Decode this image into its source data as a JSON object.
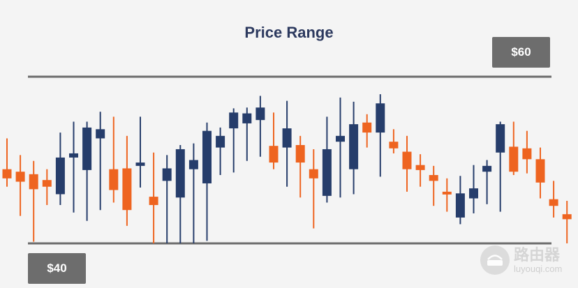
{
  "chart_data": {
    "type": "candlestick",
    "title": "Price Range",
    "resistance": {
      "value": 60,
      "label": "$60"
    },
    "support": {
      "value": 40,
      "label": "$40"
    },
    "ylim": [
      40,
      60
    ],
    "colors": {
      "up": "#263d6b",
      "down": "#ee6420",
      "line": "#6b6b6b",
      "title": "#2d3a5f"
    },
    "candles": [
      {
        "open": 48.9,
        "close": 47.8,
        "high": 52.6,
        "low": 46.8,
        "dir": "down"
      },
      {
        "open": 48.6,
        "close": 47.4,
        "high": 50.6,
        "low": 43.3,
        "dir": "down"
      },
      {
        "open": 48.3,
        "close": 46.5,
        "high": 49.9,
        "low": 40.2,
        "dir": "down"
      },
      {
        "open": 47.6,
        "close": 46.8,
        "high": 48.9,
        "low": 44.6,
        "dir": "down"
      },
      {
        "open": 45.9,
        "close": 50.3,
        "high": 53.3,
        "low": 44.6,
        "dir": "up"
      },
      {
        "open": 50.3,
        "close": 50.8,
        "high": 54.6,
        "low": 43.7,
        "dir": "up"
      },
      {
        "open": 48.8,
        "close": 53.9,
        "high": 54.6,
        "low": 42.7,
        "dir": "up"
      },
      {
        "open": 52.6,
        "close": 53.7,
        "high": 55.8,
        "low": 44.0,
        "dir": "up"
      },
      {
        "open": 48.9,
        "close": 46.4,
        "high": 55.2,
        "low": 44.9,
        "dir": "down"
      },
      {
        "open": 49.0,
        "close": 44.0,
        "high": 52.9,
        "low": 42.1,
        "dir": "down"
      },
      {
        "open": 49.3,
        "close": 49.7,
        "high": 55.2,
        "low": 46.7,
        "dir": "up"
      },
      {
        "open": 45.6,
        "close": 44.6,
        "high": 50.9,
        "low": 40.0,
        "dir": "down"
      },
      {
        "open": 47.5,
        "close": 49.0,
        "high": 50.6,
        "low": 40.0,
        "dir": "up"
      },
      {
        "open": 45.5,
        "close": 51.3,
        "high": 51.8,
        "low": 40.0,
        "dir": "up"
      },
      {
        "open": 48.9,
        "close": 50.0,
        "high": 52.0,
        "low": 40.0,
        "dir": "up"
      },
      {
        "open": 47.2,
        "close": 53.5,
        "high": 54.5,
        "low": 40.3,
        "dir": "up"
      },
      {
        "open": 51.5,
        "close": 52.9,
        "high": 53.9,
        "low": 48.2,
        "dir": "up"
      },
      {
        "open": 53.8,
        "close": 55.7,
        "high": 56.2,
        "low": 48.5,
        "dir": "up"
      },
      {
        "open": 54.4,
        "close": 55.6,
        "high": 56.3,
        "low": 49.9,
        "dir": "up"
      },
      {
        "open": 54.8,
        "close": 56.3,
        "high": 57.7,
        "low": 50.4,
        "dir": "up"
      },
      {
        "open": 51.7,
        "close": 49.7,
        "high": 55.7,
        "low": 48.9,
        "dir": "down"
      },
      {
        "open": 51.5,
        "close": 53.8,
        "high": 57.1,
        "low": 46.8,
        "dir": "up"
      },
      {
        "open": 51.8,
        "close": 49.7,
        "high": 52.9,
        "low": 45.5,
        "dir": "down"
      },
      {
        "open": 48.9,
        "close": 47.8,
        "high": 51.3,
        "low": 41.8,
        "dir": "down"
      },
      {
        "open": 45.7,
        "close": 51.3,
        "high": 55.2,
        "low": 44.9,
        "dir": "up"
      },
      {
        "open": 52.2,
        "close": 52.9,
        "high": 57.5,
        "low": 45.5,
        "dir": "up"
      },
      {
        "open": 48.9,
        "close": 54.3,
        "high": 57.0,
        "low": 45.9,
        "dir": "up"
      },
      {
        "open": 54.5,
        "close": 53.3,
        "high": 55.5,
        "low": 51.5,
        "dir": "down"
      },
      {
        "open": 53.3,
        "close": 56.8,
        "high": 57.9,
        "low": 48.0,
        "dir": "up"
      },
      {
        "open": 52.2,
        "close": 51.4,
        "high": 53.7,
        "low": 50.8,
        "dir": "down"
      },
      {
        "open": 51.0,
        "close": 48.9,
        "high": 52.9,
        "low": 46.2,
        "dir": "down"
      },
      {
        "open": 49.4,
        "close": 48.8,
        "high": 50.7,
        "low": 46.8,
        "dir": "down"
      },
      {
        "open": 48.2,
        "close": 47.5,
        "high": 49.3,
        "low": 44.5,
        "dir": "down"
      },
      {
        "open": 46.2,
        "close": 46.0,
        "high": 47.8,
        "low": 43.8,
        "dir": "down"
      },
      {
        "open": 43.1,
        "close": 46.0,
        "high": 48.1,
        "low": 42.3,
        "dir": "up"
      },
      {
        "open": 45.4,
        "close": 46.6,
        "high": 49.4,
        "low": 43.6,
        "dir": "up"
      },
      {
        "open": 48.6,
        "close": 49.3,
        "high": 50.0,
        "low": 44.7,
        "dir": "up"
      },
      {
        "open": 50.9,
        "close": 54.3,
        "high": 54.6,
        "low": 43.8,
        "dir": "up"
      },
      {
        "open": 51.6,
        "close": 48.6,
        "high": 54.6,
        "low": 48.2,
        "dir": "down"
      },
      {
        "open": 51.4,
        "close": 50.1,
        "high": 53.5,
        "low": 48.4,
        "dir": "down"
      },
      {
        "open": 50.1,
        "close": 47.3,
        "high": 51.5,
        "low": 45.4,
        "dir": "down"
      },
      {
        "open": 45.3,
        "close": 44.5,
        "high": 47.5,
        "low": 43.1,
        "dir": "down"
      },
      {
        "open": 43.5,
        "close": 42.9,
        "high": 45.1,
        "low": 40.0,
        "dir": "down"
      }
    ]
  },
  "watermark": {
    "cn": "路由器",
    "en": "luyouqi.com"
  }
}
